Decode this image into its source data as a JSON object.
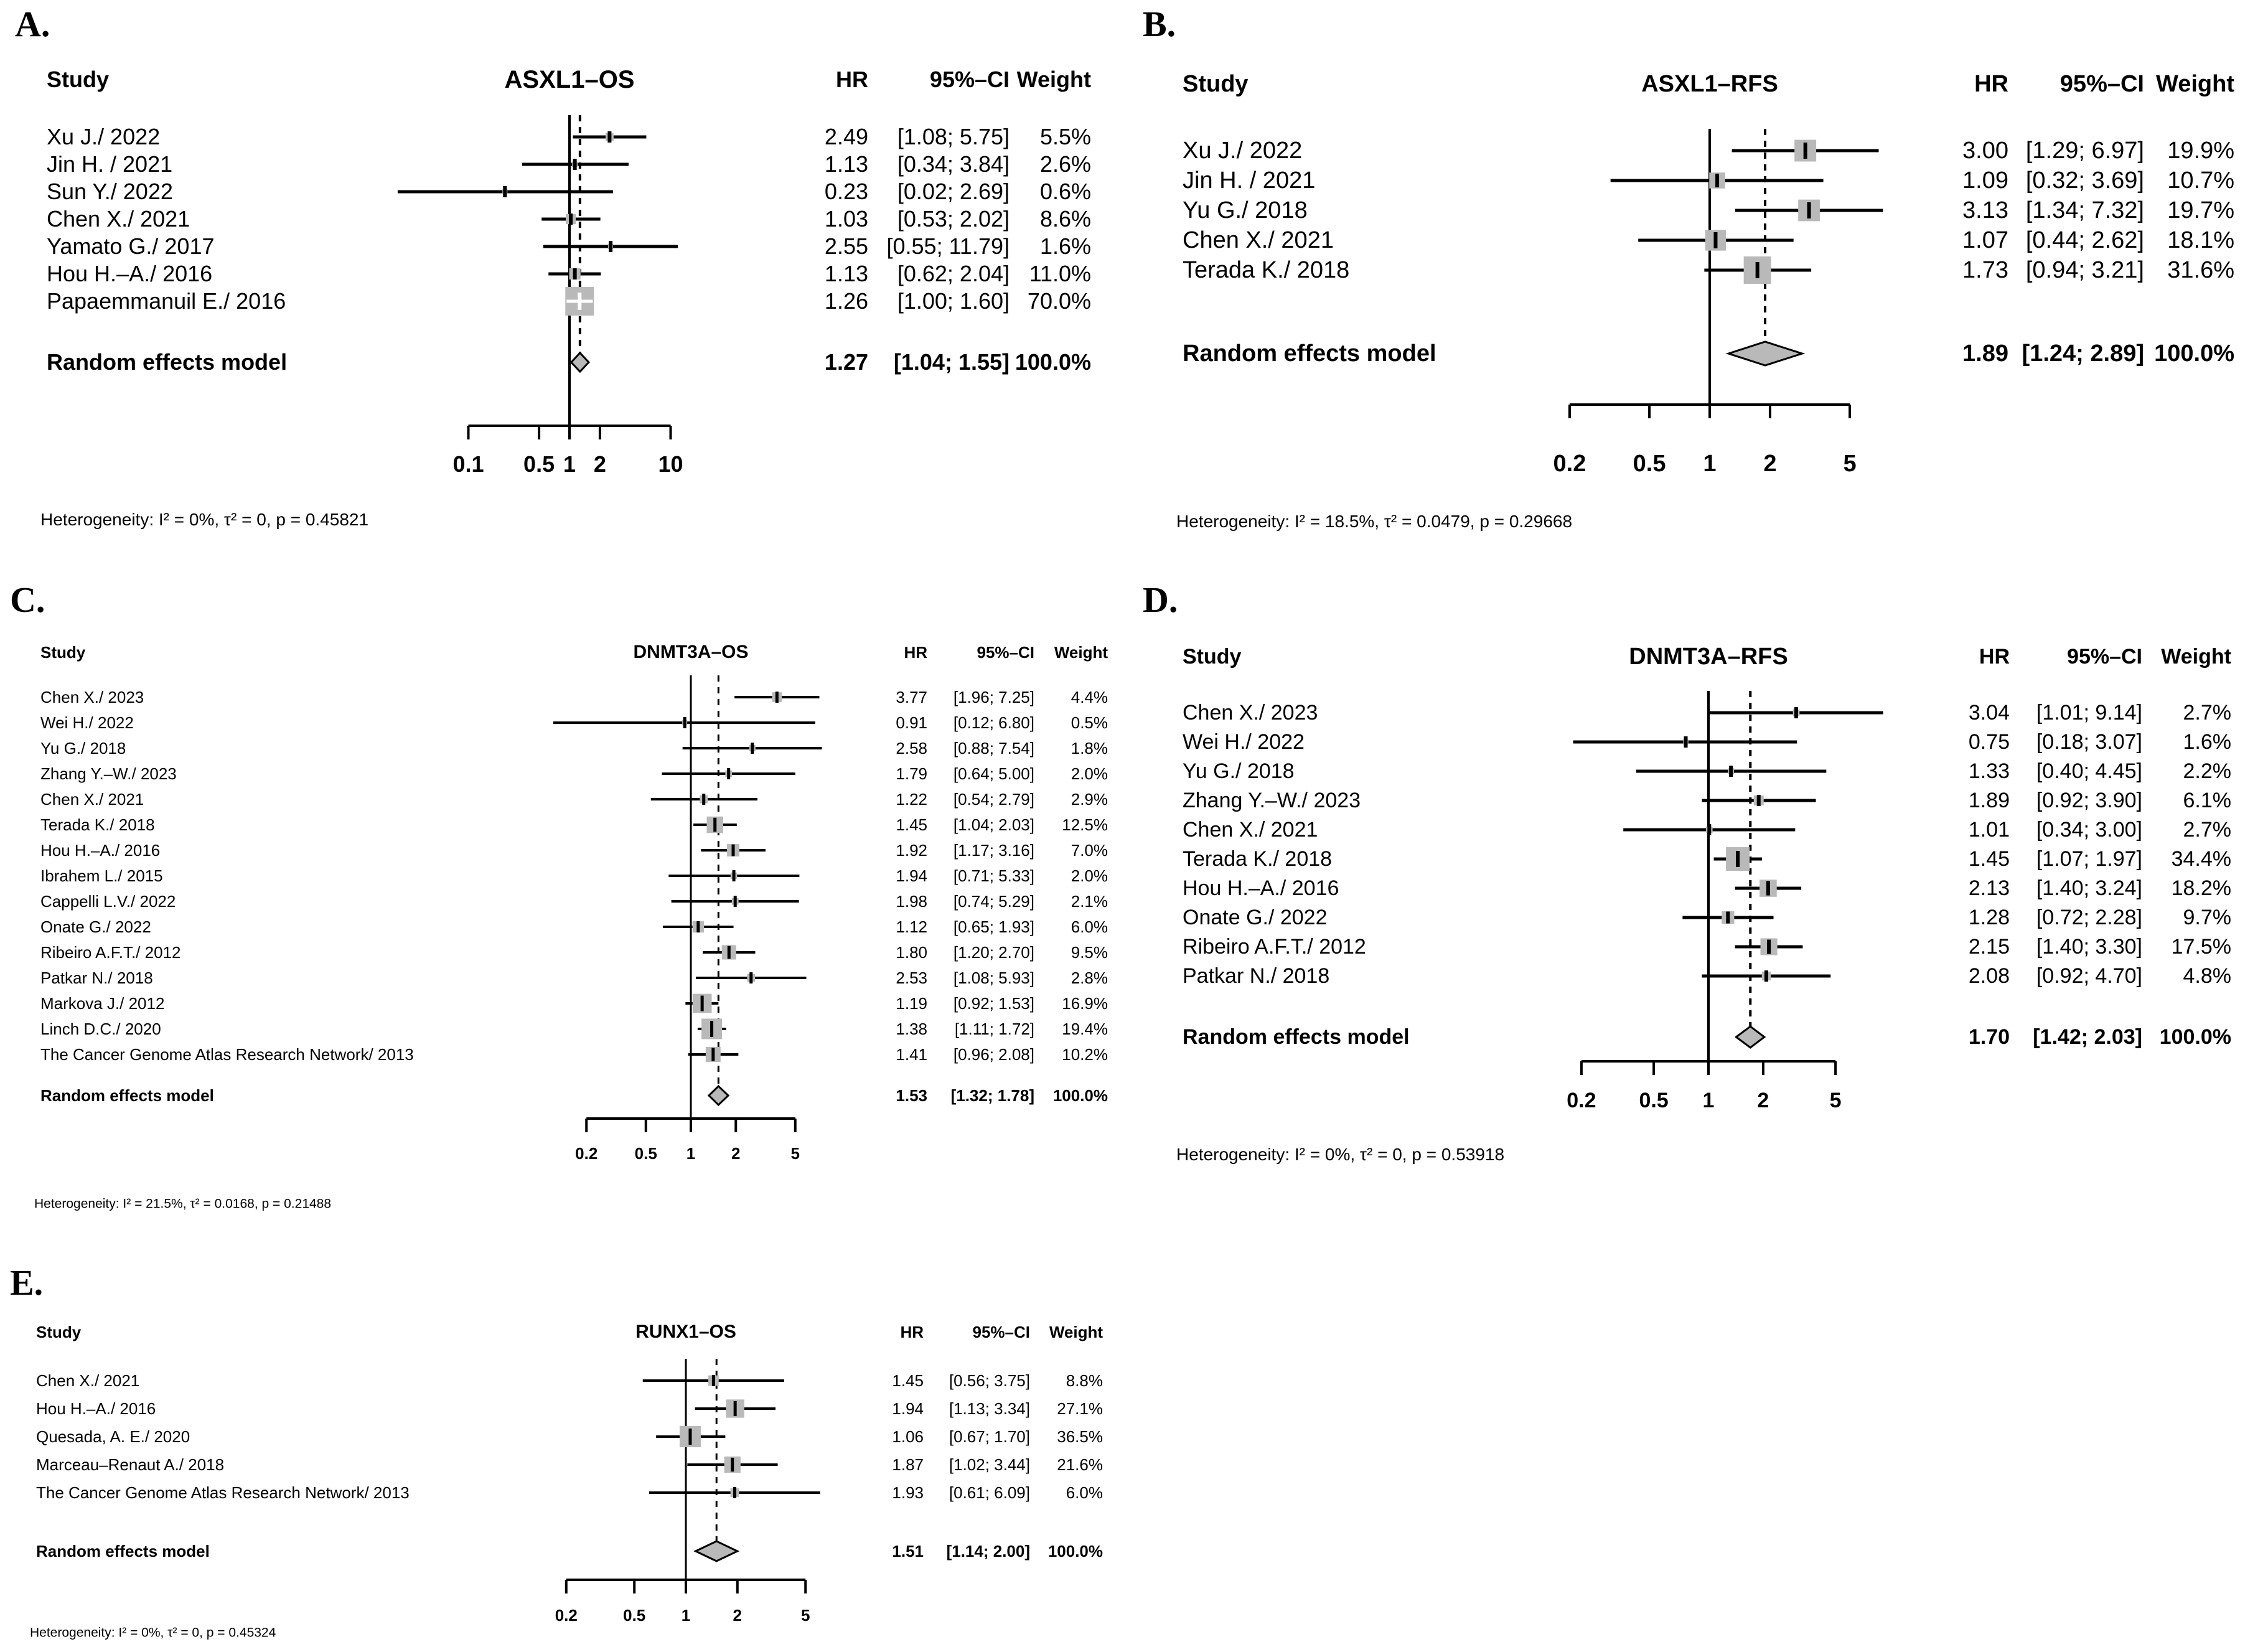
{
  "chart_data": [
    {
      "type": "forest",
      "xscale": "log",
      "label": "A.",
      "title": "ASXL1–OS",
      "columns": {
        "study": "Study",
        "hr": "HR",
        "ci": "95%–CI",
        "weight": "Weight"
      },
      "studies": [
        {
          "name": "Xu J./ 2022",
          "hr": "2.49",
          "ci": "[1.08;  5.75]",
          "weight": "5.5%",
          "hr_val": 2.49,
          "lo": 1.08,
          "hi": 5.75,
          "w": 5.5
        },
        {
          "name": "Jin H. / 2021",
          "hr": "1.13",
          "ci": "[0.34;  3.84]",
          "weight": "2.6%",
          "hr_val": 1.13,
          "lo": 0.34,
          "hi": 3.84,
          "w": 2.6
        },
        {
          "name": "Sun Y./ 2022",
          "hr": "0.23",
          "ci": "[0.02;  2.69]",
          "weight": "0.6%",
          "hr_val": 0.23,
          "lo": 0.02,
          "hi": 2.69,
          "w": 0.6
        },
        {
          "name": "Chen X./ 2021",
          "hr": "1.03",
          "ci": "[0.53;  2.02]",
          "weight": "8.6%",
          "hr_val": 1.03,
          "lo": 0.53,
          "hi": 2.02,
          "w": 8.6
        },
        {
          "name": "Yamato G./ 2017",
          "hr": "2.55",
          "ci": "[0.55; 11.79]",
          "weight": "1.6%",
          "hr_val": 2.55,
          "lo": 0.55,
          "hi": 11.79,
          "w": 1.6
        },
        {
          "name": "Hou H.–A./ 2016",
          "hr": "1.13",
          "ci": "[0.62;  2.04]",
          "weight": "11.0%",
          "hr_val": 1.13,
          "lo": 0.62,
          "hi": 2.04,
          "w": 11.0
        },
        {
          "name": "Papaemmanuil E./ 2016",
          "hr": "1.26",
          "ci": "[1.00;  1.60]",
          "weight": "70.0%",
          "hr_val": 1.26,
          "lo": 1.0,
          "hi": 1.6,
          "w": 70.0
        }
      ],
      "pooled": {
        "name": "Random effects model",
        "hr": "1.27",
        "ci": "[1.04;  1.55]",
        "weight": "100.0%",
        "hr_val": 1.27,
        "lo": 1.04,
        "hi": 1.55
      },
      "axis_tick_labels": [
        "0.1",
        "0.5",
        "1",
        "2",
        "10"
      ],
      "axis_tick_values": [
        0.1,
        0.5,
        1,
        2,
        10
      ],
      "heterogeneity": "Heterogeneity: I² = 0%, τ² = 0, p = 0.45821"
    },
    {
      "type": "forest",
      "xscale": "log",
      "label": "B.",
      "title": "ASXL1–RFS",
      "columns": {
        "study": "Study",
        "hr": "HR",
        "ci": "95%–CI",
        "weight": "Weight"
      },
      "studies": [
        {
          "name": "Xu J./ 2022",
          "hr": "3.00",
          "ci": "[1.29; 6.97]",
          "weight": "19.9%",
          "hr_val": 3.0,
          "lo": 1.29,
          "hi": 6.97,
          "w": 19.9
        },
        {
          "name": "Jin H. / 2021",
          "hr": "1.09",
          "ci": "[0.32; 3.69]",
          "weight": "10.7%",
          "hr_val": 1.09,
          "lo": 0.32,
          "hi": 3.69,
          "w": 10.7
        },
        {
          "name": "Yu G./ 2018",
          "hr": "3.13",
          "ci": "[1.34; 7.32]",
          "weight": "19.7%",
          "hr_val": 3.13,
          "lo": 1.34,
          "hi": 7.32,
          "w": 19.7
        },
        {
          "name": "Chen X./ 2021",
          "hr": "1.07",
          "ci": "[0.44; 2.62]",
          "weight": "18.1%",
          "hr_val": 1.07,
          "lo": 0.44,
          "hi": 2.62,
          "w": 18.1
        },
        {
          "name": "Terada K./ 2018",
          "hr": "1.73",
          "ci": "[0.94; 3.21]",
          "weight": "31.6%",
          "hr_val": 1.73,
          "lo": 0.94,
          "hi": 3.21,
          "w": 31.6
        }
      ],
      "pooled": {
        "name": "Random effects model",
        "hr": "1.89",
        "ci": "[1.24; 2.89]",
        "weight": "100.0%",
        "hr_val": 1.89,
        "lo": 1.24,
        "hi": 2.89
      },
      "axis_tick_labels": [
        "0.2",
        "0.5",
        "1",
        "2",
        "5"
      ],
      "axis_tick_values": [
        0.2,
        0.5,
        1,
        2,
        5
      ],
      "heterogeneity": "Heterogeneity: I² = 18.5%, τ² = 0.0479, p = 0.29668"
    },
    {
      "type": "forest",
      "xscale": "log",
      "label": "C.",
      "title": "DNMT3A–OS",
      "columns": {
        "study": "Study",
        "hr": "HR",
        "ci": "95%–CI",
        "weight": "Weight"
      },
      "studies": [
        {
          "name": "Chen X./ 2023",
          "hr": "3.77",
          "ci": "[1.96; 7.25]",
          "weight": "4.4%",
          "hr_val": 3.77,
          "lo": 1.96,
          "hi": 7.25,
          "w": 4.4
        },
        {
          "name": "Wei H./ 2022",
          "hr": "0.91",
          "ci": "[0.12; 6.80]",
          "weight": "0.5%",
          "hr_val": 0.91,
          "lo": 0.12,
          "hi": 6.8,
          "w": 0.5
        },
        {
          "name": "Yu G./ 2018",
          "hr": "2.58",
          "ci": "[0.88; 7.54]",
          "weight": "1.8%",
          "hr_val": 2.58,
          "lo": 0.88,
          "hi": 7.54,
          "w": 1.8
        },
        {
          "name": "Zhang Y.–W./ 2023",
          "hr": "1.79",
          "ci": "[0.64; 5.00]",
          "weight": "2.0%",
          "hr_val": 1.79,
          "lo": 0.64,
          "hi": 5.0,
          "w": 2.0
        },
        {
          "name": "Chen X./ 2021",
          "hr": "1.22",
          "ci": "[0.54; 2.79]",
          "weight": "2.9%",
          "hr_val": 1.22,
          "lo": 0.54,
          "hi": 2.79,
          "w": 2.9
        },
        {
          "name": "Terada K./ 2018",
          "hr": "1.45",
          "ci": "[1.04; 2.03]",
          "weight": "12.5%",
          "hr_val": 1.45,
          "lo": 1.04,
          "hi": 2.03,
          "w": 12.5
        },
        {
          "name": "Hou H.–A./ 2016",
          "hr": "1.92",
          "ci": "[1.17; 3.16]",
          "weight": "7.0%",
          "hr_val": 1.92,
          "lo": 1.17,
          "hi": 3.16,
          "w": 7.0
        },
        {
          "name": "Ibrahem L./ 2015",
          "hr": "1.94",
          "ci": "[0.71; 5.33]",
          "weight": "2.0%",
          "hr_val": 1.94,
          "lo": 0.71,
          "hi": 5.33,
          "w": 2.0
        },
        {
          "name": "Cappelli L.V./ 2022",
          "hr": "1.98",
          "ci": "[0.74; 5.29]",
          "weight": "2.1%",
          "hr_val": 1.98,
          "lo": 0.74,
          "hi": 5.29,
          "w": 2.1
        },
        {
          "name": "Onate G./ 2022",
          "hr": "1.12",
          "ci": "[0.65; 1.93]",
          "weight": "6.0%",
          "hr_val": 1.12,
          "lo": 0.65,
          "hi": 1.93,
          "w": 6.0
        },
        {
          "name": "Ribeiro A.F.T./ 2012",
          "hr": "1.80",
          "ci": "[1.20; 2.70]",
          "weight": "9.5%",
          "hr_val": 1.8,
          "lo": 1.2,
          "hi": 2.7,
          "w": 9.5
        },
        {
          "name": "Patkar N./ 2018",
          "hr": "2.53",
          "ci": "[1.08; 5.93]",
          "weight": "2.8%",
          "hr_val": 2.53,
          "lo": 1.08,
          "hi": 5.93,
          "w": 2.8
        },
        {
          "name": "Markova J./ 2012",
          "hr": "1.19",
          "ci": "[0.92; 1.53]",
          "weight": "16.9%",
          "hr_val": 1.19,
          "lo": 0.92,
          "hi": 1.53,
          "w": 16.9
        },
        {
          "name": "Linch D.C./ 2020",
          "hr": "1.38",
          "ci": "[1.11; 1.72]",
          "weight": "19.4%",
          "hr_val": 1.38,
          "lo": 1.11,
          "hi": 1.72,
          "w": 19.4
        },
        {
          "name": "The Cancer Genome Atlas Research Network/ 2013",
          "hr": "1.41",
          "ci": "[0.96; 2.08]",
          "weight": "10.2%",
          "hr_val": 1.41,
          "lo": 0.96,
          "hi": 2.08,
          "w": 10.2
        }
      ],
      "pooled": {
        "name": "Random effects model",
        "hr": "1.53",
        "ci": "[1.32; 1.78]",
        "weight": "100.0%",
        "hr_val": 1.53,
        "lo": 1.32,
        "hi": 1.78
      },
      "axis_tick_labels": [
        "0.2",
        "0.5",
        "1",
        "2",
        "5"
      ],
      "axis_tick_values": [
        0.2,
        0.5,
        1,
        2,
        5
      ],
      "heterogeneity": "Heterogeneity: I² = 21.5%, τ² = 0.0168, p = 0.21488"
    },
    {
      "type": "forest",
      "xscale": "log",
      "label": "D.",
      "title": "DNMT3A–RFS",
      "columns": {
        "study": "Study",
        "hr": "HR",
        "ci": "95%–CI",
        "weight": "Weight"
      },
      "studies": [
        {
          "name": "Chen X./ 2023",
          "hr": "3.04",
          "ci": "[1.01; 9.14]",
          "weight": "2.7%",
          "hr_val": 3.04,
          "lo": 1.01,
          "hi": 9.14,
          "w": 2.7
        },
        {
          "name": "Wei H./ 2022",
          "hr": "0.75",
          "ci": "[0.18; 3.07]",
          "weight": "1.6%",
          "hr_val": 0.75,
          "lo": 0.18,
          "hi": 3.07,
          "w": 1.6
        },
        {
          "name": "Yu G./ 2018",
          "hr": "1.33",
          "ci": "[0.40; 4.45]",
          "weight": "2.2%",
          "hr_val": 1.33,
          "lo": 0.4,
          "hi": 4.45,
          "w": 2.2
        },
        {
          "name": "Zhang Y.–W./ 2023",
          "hr": "1.89",
          "ci": "[0.92; 3.90]",
          "weight": "6.1%",
          "hr_val": 1.89,
          "lo": 0.92,
          "hi": 3.9,
          "w": 6.1
        },
        {
          "name": "Chen X./ 2021",
          "hr": "1.01",
          "ci": "[0.34; 3.00]",
          "weight": "2.7%",
          "hr_val": 1.01,
          "lo": 0.34,
          "hi": 3.0,
          "w": 2.7
        },
        {
          "name": "Terada K./ 2018",
          "hr": "1.45",
          "ci": "[1.07; 1.97]",
          "weight": "34.4%",
          "hr_val": 1.45,
          "lo": 1.07,
          "hi": 1.97,
          "w": 34.4
        },
        {
          "name": "Hou H.–A./ 2016",
          "hr": "2.13",
          "ci": "[1.40; 3.24]",
          "weight": "18.2%",
          "hr_val": 2.13,
          "lo": 1.4,
          "hi": 3.24,
          "w": 18.2
        },
        {
          "name": "Onate G./ 2022",
          "hr": "1.28",
          "ci": "[0.72; 2.28]",
          "weight": "9.7%",
          "hr_val": 1.28,
          "lo": 0.72,
          "hi": 2.28,
          "w": 9.7
        },
        {
          "name": "Ribeiro A.F.T./ 2012",
          "hr": "2.15",
          "ci": "[1.40; 3.30]",
          "weight": "17.5%",
          "hr_val": 2.15,
          "lo": 1.4,
          "hi": 3.3,
          "w": 17.5
        },
        {
          "name": "Patkar N./ 2018",
          "hr": "2.08",
          "ci": "[0.92; 4.70]",
          "weight": "4.8%",
          "hr_val": 2.08,
          "lo": 0.92,
          "hi": 4.7,
          "w": 4.8
        }
      ],
      "pooled": {
        "name": "Random effects model",
        "hr": "1.70",
        "ci": "[1.42; 2.03]",
        "weight": "100.0%",
        "hr_val": 1.7,
        "lo": 1.42,
        "hi": 2.03
      },
      "axis_tick_labels": [
        "0.2",
        "0.5",
        "1",
        "2",
        "5"
      ],
      "axis_tick_values": [
        0.2,
        0.5,
        1,
        2,
        5
      ],
      "heterogeneity": "Heterogeneity: I² = 0%, τ² = 0, p = 0.53918"
    },
    {
      "type": "forest",
      "xscale": "log",
      "label": "E.",
      "title": "RUNX1–OS",
      "columns": {
        "study": "Study",
        "hr": "HR",
        "ci": "95%–CI",
        "weight": "Weight"
      },
      "studies": [
        {
          "name": "Chen X./ 2021",
          "hr": "1.45",
          "ci": "[0.56; 3.75]",
          "weight": "8.8%",
          "hr_val": 1.45,
          "lo": 0.56,
          "hi": 3.75,
          "w": 8.8
        },
        {
          "name": "Hou H.–A./ 2016",
          "hr": "1.94",
          "ci": "[1.13; 3.34]",
          "weight": "27.1%",
          "hr_val": 1.94,
          "lo": 1.13,
          "hi": 3.34,
          "w": 27.1
        },
        {
          "name": "Quesada, A. E./ 2020",
          "hr": "1.06",
          "ci": "[0.67; 1.70]",
          "weight": "36.5%",
          "hr_val": 1.06,
          "lo": 0.67,
          "hi": 1.7,
          "w": 36.5
        },
        {
          "name": "Marceau–Renaut A./ 2018",
          "hr": "1.87",
          "ci": "[1.02; 3.44]",
          "weight": "21.6%",
          "hr_val": 1.87,
          "lo": 1.02,
          "hi": 3.44,
          "w": 21.6
        },
        {
          "name": "The Cancer Genome Atlas Research Network/ 2013",
          "hr": "1.93",
          "ci": "[0.61; 6.09]",
          "weight": "6.0%",
          "hr_val": 1.93,
          "lo": 0.61,
          "hi": 6.09,
          "w": 6.0
        }
      ],
      "pooled": {
        "name": "Random effects model",
        "hr": "1.51",
        "ci": "[1.14; 2.00]",
        "weight": "100.0%",
        "hr_val": 1.51,
        "lo": 1.14,
        "hi": 2.0
      },
      "axis_tick_labels": [
        "0.2",
        "0.5",
        "1",
        "2",
        "5"
      ],
      "axis_tick_values": [
        0.2,
        0.5,
        1,
        2,
        5
      ],
      "heterogeneity": "Heterogeneity: I² = 0%, τ² = 0, p = 0.45324"
    }
  ],
  "colors": {
    "square": "#b9b9b9",
    "diamond_fill": "#b9b9b9",
    "line": "#000000",
    "background": "#ffffff"
  }
}
